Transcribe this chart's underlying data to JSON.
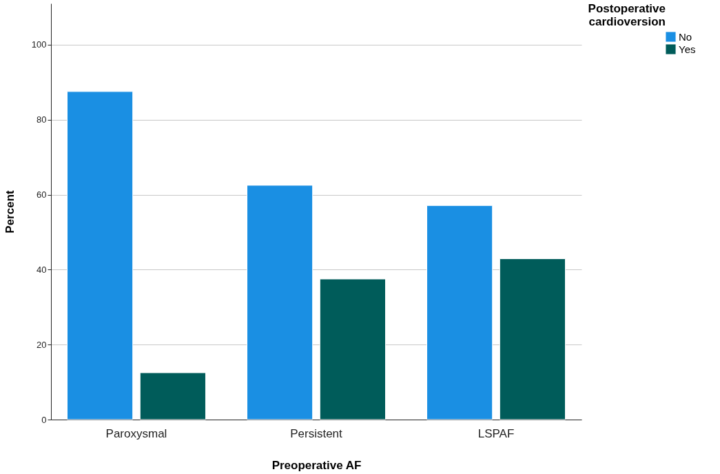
{
  "chart_data": {
    "type": "bar",
    "xlabel": "Preoperative AF",
    "ylabel": "Percent",
    "legend_title": "Postoperative cardioversion",
    "categories": [
      "Paroxysmal",
      "Persistent",
      "LSPAF"
    ],
    "series": [
      {
        "name": "No",
        "color": "#1a8fe3",
        "values": [
          87.5,
          62.5,
          57.1
        ]
      },
      {
        "name": "Yes",
        "color": "#005c5a",
        "values": [
          12.5,
          37.5,
          42.9
        ]
      }
    ],
    "ylim": [
      0,
      111
    ],
    "yticks": [
      0,
      20,
      40,
      60,
      80,
      100
    ],
    "grid": "y",
    "legend": "top right"
  }
}
